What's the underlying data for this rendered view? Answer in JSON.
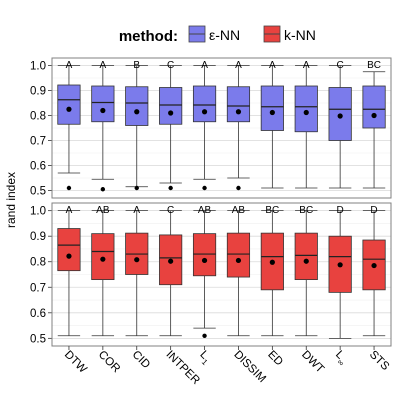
{
  "chart_data": {
    "type": "boxplot",
    "legend": {
      "title": "method:",
      "items": [
        {
          "label": "ε-NN",
          "color": "#7B7BEB"
        },
        {
          "label": "k-NN",
          "color": "#E8423F"
        }
      ],
      "position": "top"
    },
    "ylabel": "rand index",
    "categories": [
      "DTW",
      "COR",
      "CID",
      "INTPER",
      "L1",
      "DISSIM",
      "ED",
      "DWT",
      "L∞",
      "STS"
    ],
    "category_labels": [
      {
        "base": "DTW"
      },
      {
        "base": "COR"
      },
      {
        "base": "CID"
      },
      {
        "base": "INTPER"
      },
      {
        "base": "L",
        "sub": "1"
      },
      {
        "base": "DISSIM"
      },
      {
        "base": "ED"
      },
      {
        "base": "DWT"
      },
      {
        "base": "L",
        "sub": "∞"
      },
      {
        "base": "STS"
      }
    ],
    "ylim": [
      0.47,
      1.03
    ],
    "yticks": [
      0.5,
      0.6,
      0.7,
      0.8,
      0.9,
      1.0
    ],
    "ytick_labels": [
      "0.5",
      "0.6",
      "0.7",
      "0.8",
      "0.9",
      "1.0"
    ],
    "grid": true,
    "panels": [
      {
        "name": "ε-NN",
        "color": "#7B7BEB",
        "groups": [
          "A",
          "A",
          "B",
          "C",
          "A",
          "A",
          "A",
          "A",
          "C",
          "BC"
        ],
        "boxes": [
          {
            "q1": 0.765,
            "median": 0.863,
            "q3": 0.922,
            "whisker_low": 0.57,
            "whisker_high": 1.0,
            "mean": 0.825,
            "outliers": [
              0.51
            ]
          },
          {
            "q1": 0.775,
            "median": 0.852,
            "q3": 0.918,
            "whisker_low": 0.545,
            "whisker_high": 1.0,
            "mean": 0.82,
            "outliers": [
              0.505
            ]
          },
          {
            "q1": 0.76,
            "median": 0.85,
            "q3": 0.915,
            "whisker_low": 0.515,
            "whisker_high": 1.0,
            "mean": 0.815,
            "outliers": [
              0.51
            ]
          },
          {
            "q1": 0.765,
            "median": 0.842,
            "q3": 0.912,
            "whisker_low": 0.53,
            "whisker_high": 1.0,
            "mean": 0.81,
            "outliers": [
              0.51
            ]
          },
          {
            "q1": 0.775,
            "median": 0.842,
            "q3": 0.918,
            "whisker_low": 0.545,
            "whisker_high": 1.0,
            "mean": 0.815,
            "outliers": [
              0.51
            ]
          },
          {
            "q1": 0.775,
            "median": 0.838,
            "q3": 0.915,
            "whisker_low": 0.55,
            "whisker_high": 1.0,
            "mean": 0.815,
            "outliers": [
              0.51
            ]
          },
          {
            "q1": 0.74,
            "median": 0.835,
            "q3": 0.918,
            "whisker_low": 0.51,
            "whisker_high": 1.0,
            "mean": 0.812,
            "outliers": []
          },
          {
            "q1": 0.735,
            "median": 0.835,
            "q3": 0.918,
            "whisker_low": 0.51,
            "whisker_high": 1.0,
            "mean": 0.812,
            "outliers": []
          },
          {
            "q1": 0.7,
            "median": 0.825,
            "q3": 0.912,
            "whisker_low": 0.51,
            "whisker_high": 1.0,
            "mean": 0.798,
            "outliers": []
          },
          {
            "q1": 0.75,
            "median": 0.825,
            "q3": 0.918,
            "whisker_low": 0.51,
            "whisker_high": 0.975,
            "mean": 0.8,
            "outliers": []
          }
        ]
      },
      {
        "name": "k-NN",
        "color": "#E8423F",
        "groups": [
          "A",
          "AB",
          "A",
          "C",
          "AB",
          "AB",
          "BC",
          "BC",
          "D",
          "D"
        ],
        "boxes": [
          {
            "q1": 0.765,
            "median": 0.865,
            "q3": 0.93,
            "whisker_low": 0.51,
            "whisker_high": 1.0,
            "mean": 0.822,
            "outliers": []
          },
          {
            "q1": 0.73,
            "median": 0.84,
            "q3": 0.91,
            "whisker_low": 0.51,
            "whisker_high": 1.0,
            "mean": 0.81,
            "outliers": []
          },
          {
            "q1": 0.75,
            "median": 0.83,
            "q3": 0.912,
            "whisker_low": 0.51,
            "whisker_high": 1.0,
            "mean": 0.808,
            "outliers": []
          },
          {
            "q1": 0.71,
            "median": 0.815,
            "q3": 0.905,
            "whisker_low": 0.51,
            "whisker_high": 1.0,
            "mean": 0.802,
            "outliers": []
          },
          {
            "q1": 0.745,
            "median": 0.83,
            "q3": 0.91,
            "whisker_low": 0.54,
            "whisker_high": 1.0,
            "mean": 0.805,
            "outliers": [
              0.51
            ]
          },
          {
            "q1": 0.74,
            "median": 0.83,
            "q3": 0.912,
            "whisker_low": 0.51,
            "whisker_high": 1.0,
            "mean": 0.805,
            "outliers": []
          },
          {
            "q1": 0.69,
            "median": 0.82,
            "q3": 0.912,
            "whisker_low": 0.51,
            "whisker_high": 1.0,
            "mean": 0.798,
            "outliers": []
          },
          {
            "q1": 0.73,
            "median": 0.825,
            "q3": 0.912,
            "whisker_low": 0.51,
            "whisker_high": 1.0,
            "mean": 0.802,
            "outliers": []
          },
          {
            "q1": 0.68,
            "median": 0.82,
            "q3": 0.9,
            "whisker_low": 0.5,
            "whisker_high": 1.0,
            "mean": 0.788,
            "outliers": []
          },
          {
            "q1": 0.69,
            "median": 0.81,
            "q3": 0.885,
            "whisker_low": 0.51,
            "whisker_high": 1.0,
            "mean": 0.785,
            "outliers": []
          }
        ]
      }
    ]
  }
}
